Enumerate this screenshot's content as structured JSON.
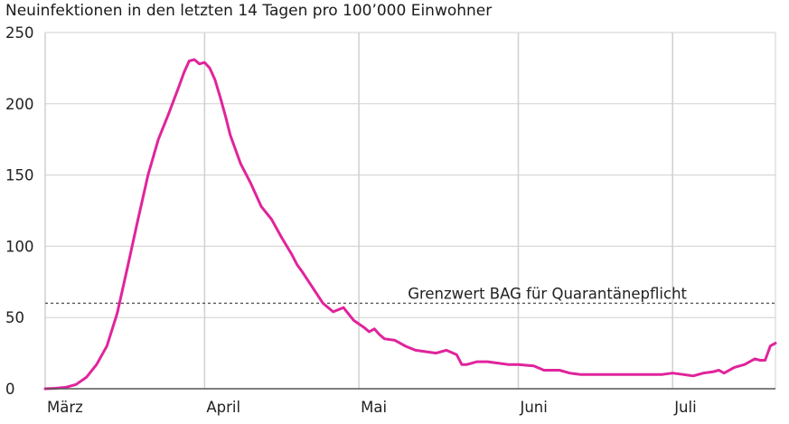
{
  "chart_data": {
    "type": "line",
    "title": "Neuinfektionen in den letzten 14 Tagen pro 100’000 Einwohner",
    "ylim": [
      0,
      250
    ],
    "yticks": [
      0,
      50,
      100,
      150,
      200,
      250
    ],
    "xticks": [
      {
        "label": "März",
        "day": 0
      },
      {
        "label": "April",
        "day": 31
      },
      {
        "label": "Mai",
        "day": 61
      },
      {
        "label": "Juni",
        "day": 92
      },
      {
        "label": "Juli",
        "day": 122
      }
    ],
    "xlim_days": [
      0,
      142
    ],
    "threshold": {
      "value": 60,
      "label": "Grenzwert BAG für Quarantänepflicht"
    },
    "grid": "horizontal and monthly vertical",
    "series": [
      {
        "color": "#e0249b",
        "x": [
          0,
          2,
          4,
          6,
          8,
          10,
          12,
          14,
          16,
          18,
          20,
          22,
          24,
          26,
          27,
          28,
          29,
          30,
          31,
          32,
          33,
          34,
          35,
          36,
          37,
          38,
          40,
          42,
          44,
          46,
          48,
          49,
          50,
          52,
          54,
          56,
          58,
          60,
          62,
          63,
          64,
          65,
          66,
          68,
          70,
          72,
          74,
          76,
          78,
          80,
          81,
          82,
          84,
          86,
          88,
          90,
          92,
          95,
          97,
          98,
          100,
          102,
          104,
          106,
          108,
          110,
          112,
          115,
          118,
          120,
          122,
          124,
          126,
          128,
          130,
          131,
          132,
          134,
          136,
          138,
          139,
          140,
          141,
          142
        ],
        "y": [
          0,
          0.3,
          1,
          3,
          8,
          17,
          30,
          53,
          85,
          118,
          150,
          175,
          193,
          212,
          222,
          230,
          231,
          228,
          229,
          225,
          217,
          205,
          192,
          178,
          168,
          158,
          144,
          128,
          119,
          106,
          94,
          87,
          82,
          71,
          60,
          54,
          57,
          48,
          43,
          40,
          42,
          38,
          35,
          34,
          30,
          27,
          26,
          25,
          27,
          24,
          17,
          17,
          19,
          19,
          18,
          17,
          17,
          16,
          13,
          13,
          13,
          11,
          10,
          10,
          10,
          10,
          10,
          10,
          10,
          10,
          11,
          10,
          9,
          11,
          12,
          13,
          11,
          15,
          17,
          21,
          20,
          20,
          30,
          32
        ]
      }
    ]
  }
}
